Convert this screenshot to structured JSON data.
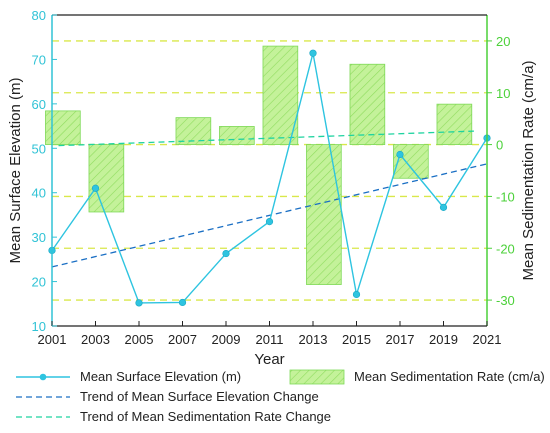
{
  "chart_data": {
    "type": "bar",
    "xlabel": "Year",
    "ylabel_left": "Mean Surface Elevation (m)",
    "ylabel_right": "Mean Sedimentation Rate (cm/a)",
    "xlim": [
      2001,
      2021
    ],
    "ylim_left": [
      10,
      80
    ],
    "ylim_right": [
      -35,
      25
    ],
    "x_ticks": [
      2001,
      2003,
      2005,
      2007,
      2009,
      2011,
      2013,
      2015,
      2017,
      2019,
      2021
    ],
    "y_left_ticks": [
      10,
      20,
      30,
      40,
      50,
      60,
      70,
      80
    ],
    "y_right_ticks": [
      -30,
      -20,
      -10,
      0,
      10,
      20
    ],
    "right_gridlines": [
      -30,
      -20,
      -10,
      0,
      10,
      20
    ],
    "colors": {
      "elevation": "#2ec4e0",
      "elevation_trend": "#1a6fc4",
      "sed_trend": "#1fd3a0",
      "bar_fill": "#b9ef8a",
      "bar_edge": "#7ed957",
      "grid": "#d9e84a",
      "left_axis": "#31c3d6",
      "right_axis": "#4cd13a"
    },
    "series": [
      {
        "name": "Mean Surface Elevation (m)",
        "kind": "line",
        "axis": "left",
        "x": [
          2001,
          2003,
          2005,
          2007,
          2009,
          2011,
          2013,
          2015,
          2017,
          2019,
          2021
        ],
        "values": [
          27,
          41,
          15.2,
          15.3,
          26.3,
          33.5,
          71.4,
          17.1,
          48.6,
          36.7,
          52.3
        ]
      },
      {
        "name": "Mean Sedimentation Rate (cm/a)",
        "kind": "bar",
        "axis": "right",
        "x": [
          2001.5,
          2003.5,
          2007.5,
          2009.5,
          2011.5,
          2013.5,
          2015.5,
          2017.5,
          2019.5
        ],
        "values": [
          6.5,
          -13,
          5.2,
          3.5,
          19,
          -27,
          15.5,
          -6.5,
          7.8
        ]
      },
      {
        "name": "Trend of Mean Surface Elevation Change",
        "kind": "trend",
        "axis": "left",
        "x": [
          2001,
          2021
        ],
        "values": [
          23.3,
          46.5
        ]
      },
      {
        "name": "Trend of Mean Sedimentation Rate Change",
        "kind": "trend",
        "axis": "right",
        "x": [
          2001.3,
          2020.4
        ],
        "values": [
          -0.2,
          2.6
        ]
      }
    ],
    "legend": [
      {
        "label": "Mean Surface Elevation (m)",
        "kind": "line"
      },
      {
        "label": "Mean Sedimentation Rate (cm/a)",
        "kind": "bar"
      },
      {
        "label": "Trend of Mean Surface Elevation Change",
        "kind": "trend-elev"
      },
      {
        "label": "Trend of Mean Sedimentation Rate Change",
        "kind": "trend-sed"
      }
    ]
  }
}
